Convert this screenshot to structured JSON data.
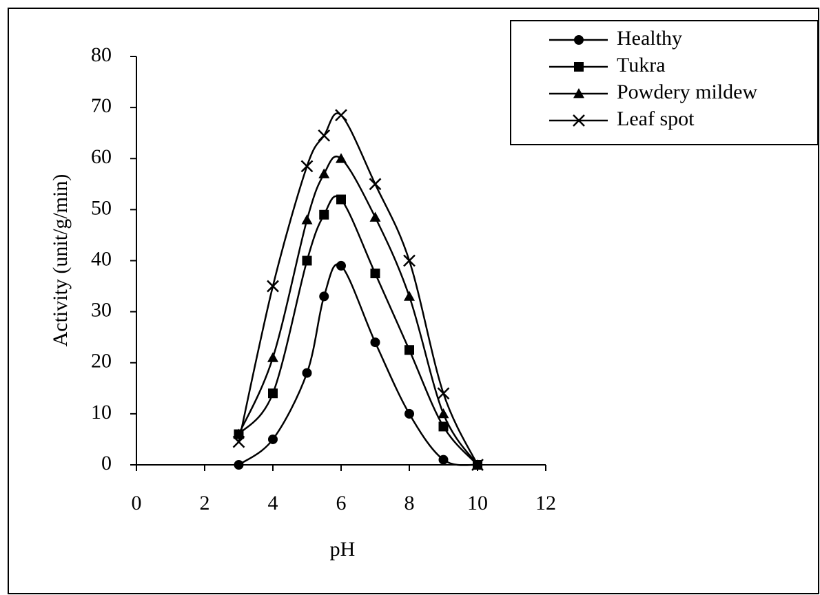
{
  "chart_data": {
    "type": "line",
    "smooth": true,
    "x_label": "pH",
    "y_label": "Activity (unit/g/min)",
    "x": [
      3,
      4,
      5,
      5.5,
      6,
      7,
      8,
      9,
      10
    ],
    "series": [
      {
        "name": "Healthy",
        "color": "#000000",
        "marker": "circle",
        "values": [
          0,
          5,
          18,
          33,
          39,
          24,
          10,
          1,
          0
        ]
      },
      {
        "name": "Tukra",
        "color": "#000000",
        "marker": "square",
        "values": [
          6,
          14,
          40,
          49,
          52,
          37.5,
          22.5,
          7.5,
          0
        ]
      },
      {
        "name": "Powdery mildew",
        "color": "#000000",
        "marker": "triangle",
        "values": [
          6,
          21,
          48,
          57,
          60,
          48.5,
          33,
          10,
          0
        ]
      },
      {
        "name": "Leaf spot",
        "color": "#000000",
        "marker": "x",
        "values": [
          4.5,
          35,
          58.5,
          64.5,
          68.5,
          55,
          40,
          14,
          0
        ]
      }
    ],
    "xlim": [
      0,
      12
    ],
    "xticks": [
      0,
      2,
      4,
      6,
      8,
      10,
      12
    ],
    "ylim": [
      0,
      80
    ],
    "yticks": [
      0,
      10,
      20,
      30,
      40,
      50,
      60,
      70,
      80
    ],
    "legend": "upper right"
  }
}
